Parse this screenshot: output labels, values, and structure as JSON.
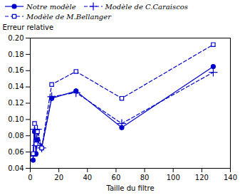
{
  "chart_data": {
    "type": "line",
    "xlabel": "Taille du filtre",
    "ylabel": "Erreur relative",
    "x": [
      2,
      3,
      4,
      5,
      8,
      15,
      32,
      64,
      128
    ],
    "series": [
      {
        "name": "Notre modèle",
        "color": "#0000cc",
        "marker": "circle",
        "line_style": "solid",
        "values": [
          0.05,
          0.085,
          0.058,
          0.075,
          0.065,
          0.126,
          0.135,
          0.09,
          0.165
        ]
      },
      {
        "name": "Modèle de C.Caraiscos",
        "color": "#0000cc",
        "marker": "plus",
        "line_style": "dashed",
        "values": [
          0.055,
          0.088,
          0.068,
          0.088,
          0.065,
          0.128,
          0.133,
          0.095,
          0.158
        ]
      },
      {
        "name": "Modèle de M.Bellanger",
        "color": "#0000cc",
        "marker": "open_square",
        "line_style": "dashed",
        "values": [
          0.058,
          0.095,
          0.07,
          0.085,
          0.065,
          0.143,
          0.159,
          0.126,
          0.192
        ]
      }
    ],
    "xlim": [
      0,
      140
    ],
    "xticks": [
      0,
      20,
      40,
      60,
      80,
      100,
      120,
      140
    ],
    "ylim": [
      0.04,
      0.2
    ],
    "yticks": [
      0.04,
      0.06,
      0.08,
      {
        "value": 0.1,
        "label": "0.10"
      },
      0.12,
      0.14,
      0.16,
      0.18,
      {
        "value": 0.2,
        "label": "0.20"
      }
    ],
    "legend": "upper left",
    "grid": false
  }
}
